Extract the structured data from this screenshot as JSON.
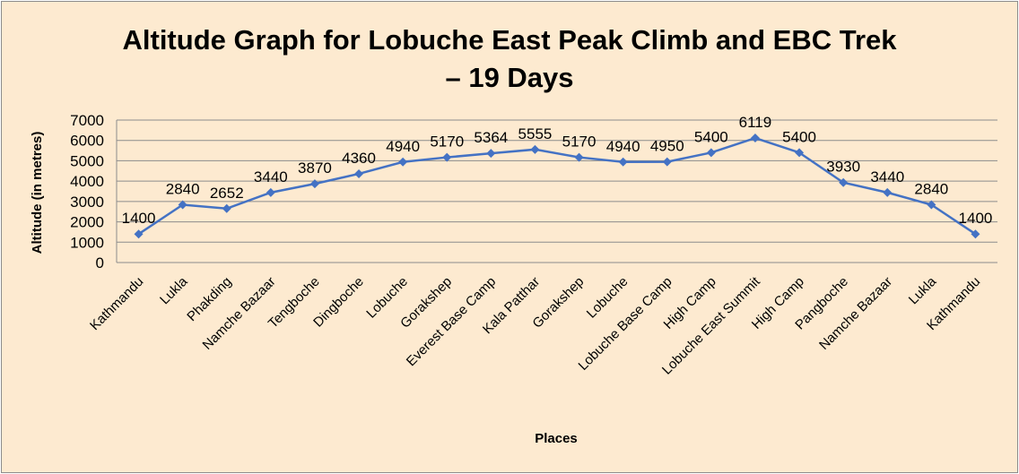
{
  "chart_data": {
    "type": "line",
    "title": "Altitude Graph for Lobuche East Peak Climb and EBC Trek",
    "title_line2": "– 19 Days",
    "xlabel": "Places",
    "ylabel": "Altitude (in metres)",
    "ylim": [
      0,
      7000
    ],
    "yticks": [
      0,
      1000,
      2000,
      3000,
      4000,
      5000,
      6000,
      7000
    ],
    "grid": true,
    "legend": "none",
    "categories": [
      "Kathmandu",
      "Lukla",
      "Phakding",
      "Namche Bazaar",
      "Tengboche",
      "Dingboche",
      "Lobuche",
      "Gorakshep",
      "Everest Base Camp",
      "Kala Patthar",
      "Gorakshep",
      "Lobuche",
      "Lobuche Base Camp",
      "High Camp",
      "Lobuche East Summit",
      "High Camp",
      "Pangboche",
      "Namche Bazaar",
      "Lukla",
      "Kathmandu"
    ],
    "values": [
      1400,
      2840,
      2652,
      3440,
      3870,
      4360,
      4940,
      5170,
      5364,
      5555,
      5170,
      4940,
      4950,
      5400,
      6119,
      5400,
      3930,
      3440,
      2840,
      1400
    ],
    "colors": {
      "line": "#4472C4",
      "background": "#FDEAD0",
      "grid": "#8C8C8C",
      "border": "#8C8C8C"
    }
  }
}
